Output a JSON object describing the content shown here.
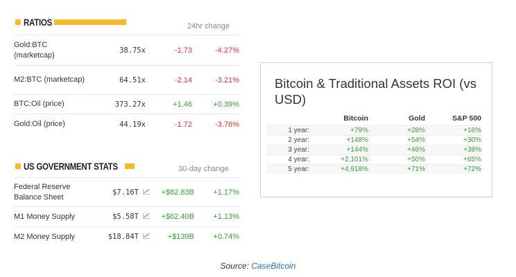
{
  "ratios": {
    "title": "RATIOS",
    "change_label": "24hr change",
    "rows": [
      {
        "name": "Gold:BTC (marketcap)",
        "value": "38.75x",
        "abs": "-1.73",
        "pct": "-4.27%"
      },
      {
        "name": "M2:BTC (marketcap)",
        "value": "64.51x",
        "abs": "-2.14",
        "pct": "-3.21%"
      },
      {
        "name": "BTC:Oil (price)",
        "value": "373.27x",
        "abs": "+1.46",
        "pct": "+0.39%"
      },
      {
        "name": "Gold:Oil (price)",
        "value": "44.19x",
        "abs": "-1.72",
        "pct": "-3.76%"
      }
    ]
  },
  "gov": {
    "title": "US GOVERNMENT STATS",
    "change_label": "30-day change",
    "rows": [
      {
        "name": "Federal Reserve Balance Sheet",
        "value": "$7.16T",
        "abs": "+$82.83B",
        "pct": "+1.17%"
      },
      {
        "name": "M1 Money Supply",
        "value": "$5.58T",
        "abs": "+$62.40B",
        "pct": "+1.13%"
      },
      {
        "name": "M2 Money Supply",
        "value": "$18.84T",
        "abs": "+$139B",
        "pct": "+0.74%"
      }
    ]
  },
  "roi": {
    "title": "Bitcoin & Traditional Assets ROI (vs USD)",
    "headers": [
      "",
      "Bitcoin",
      "Gold",
      "S&P 500"
    ],
    "rows": [
      [
        "1 year:",
        "+79%",
        "+28%",
        "+16%"
      ],
      [
        "2 year:",
        "+148%",
        "+54%",
        "+30%"
      ],
      [
        "3 year:",
        "+144%",
        "+46%",
        "+38%"
      ],
      [
        "4 year:",
        "+2,101%",
        "+50%",
        "+65%"
      ],
      [
        "5 year:",
        "+4,918%",
        "+71%",
        "+72%"
      ]
    ]
  },
  "source": {
    "prefix": "Source:",
    "link": "CaseBitcoin"
  },
  "colors": {
    "accent": "#f5b82e",
    "negative": "#e03030",
    "positive": "#3a9b3a",
    "link": "#2f70b8"
  }
}
